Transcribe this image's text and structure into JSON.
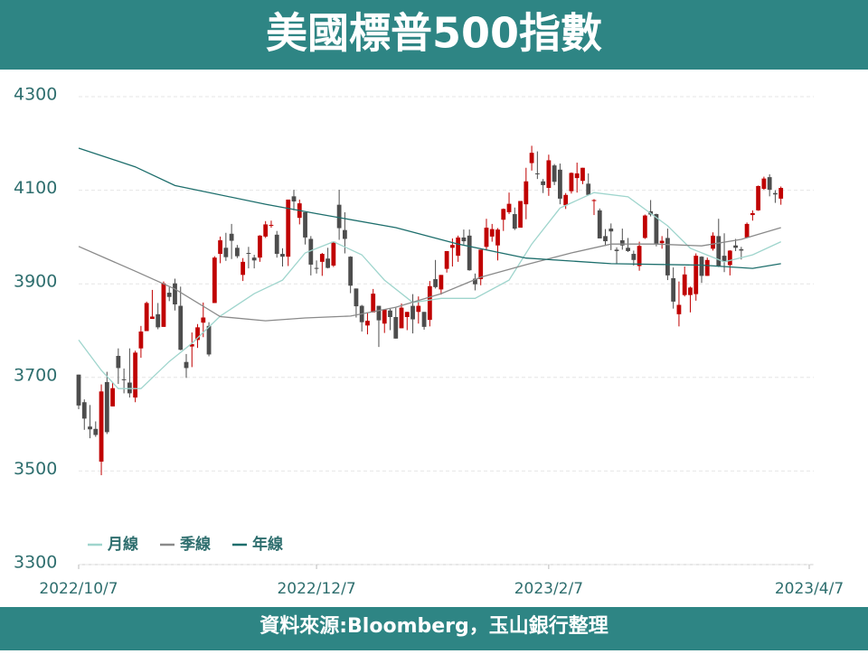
{
  "header": {
    "title": "美國標普500指數"
  },
  "footer": {
    "source": "資料來源:Bloomberg，玉山銀行整理"
  },
  "chart_data": {
    "type": "candlestick",
    "categories": [
      "2022/10/7",
      null,
      null,
      null,
      null,
      null,
      null,
      null,
      null,
      null,
      null,
      null,
      null,
      null,
      null,
      null,
      null,
      null,
      null,
      null,
      null,
      null,
      null,
      null,
      null,
      null,
      null,
      null,
      null,
      null,
      null,
      null,
      null,
      null,
      null,
      null,
      null,
      null,
      null,
      null,
      null,
      null,
      "2022/12/7",
      null,
      null,
      null,
      null,
      null,
      null,
      null,
      null,
      null,
      null,
      null,
      null,
      null,
      null,
      null,
      null,
      null,
      null,
      null,
      null,
      null,
      null,
      null,
      null,
      null,
      null,
      null,
      null,
      null,
      null,
      null,
      null,
      null,
      null,
      null,
      null,
      null,
      null,
      null,
      null,
      "2023/2/7",
      null,
      null,
      null,
      null,
      null,
      null,
      null,
      null,
      null,
      null,
      null,
      null,
      null,
      null,
      null,
      null,
      null,
      null,
      null,
      null,
      null,
      null,
      null,
      null,
      null,
      null,
      null,
      null,
      null,
      null,
      null,
      null,
      null,
      null,
      null,
      null,
      null,
      null,
      null,
      null,
      null,
      null,
      null,
      null,
      null,
      "2023/4/7"
    ],
    "candles": [
      [
        3706,
        3706,
        3632,
        3640
      ],
      [
        3647,
        3653,
        3588,
        3612
      ],
      [
        3595,
        3641,
        3570,
        3589
      ],
      [
        3590,
        3606,
        3573,
        3577
      ],
      [
        3520,
        3685,
        3491,
        3670
      ],
      [
        3690,
        3712,
        3579,
        3583
      ],
      [
        3638,
        3689,
        3638,
        3677
      ],
      [
        3746,
        3762,
        3686,
        3720
      ],
      [
        3696,
        3719,
        3666,
        3695
      ],
      [
        3689,
        3762,
        3657,
        3666
      ],
      [
        3657,
        3757,
        3647,
        3753
      ],
      [
        3762,
        3810,
        3742,
        3798
      ],
      [
        3799,
        3862,
        3799,
        3859
      ],
      [
        3825,
        3887,
        3825,
        3830
      ],
      [
        3835,
        3859,
        3803,
        3807
      ],
      [
        3808,
        3905,
        3808,
        3901
      ],
      [
        3881,
        3893,
        3863,
        3872
      ],
      [
        3901,
        3911,
        3843,
        3856
      ],
      [
        3853,
        3894,
        3758,
        3759
      ],
      [
        3733,
        3750,
        3699,
        3720
      ],
      [
        3766,
        3796,
        3722,
        3771
      ],
      [
        3780,
        3814,
        3763,
        3807
      ],
      [
        3817,
        3860,
        3786,
        3828
      ],
      [
        3810,
        3818,
        3745,
        3749
      ],
      [
        3859,
        3959,
        3859,
        3956
      ],
      [
        3964,
        4001,
        3944,
        3993
      ],
      [
        3977,
        4009,
        3949,
        3957
      ],
      [
        4007,
        4028,
        3953,
        3992
      ],
      [
        3977,
        3983,
        3955,
        3959
      ],
      [
        3919,
        3955,
        3906,
        3947
      ],
      [
        3966,
        3979,
        3933,
        3965
      ],
      [
        3956,
        3962,
        3933,
        3950
      ],
      [
        3956,
        4004,
        3947,
        4003
      ],
      [
        4001,
        4034,
        3998,
        4027
      ],
      [
        4024,
        4035,
        4020,
        4026
      ],
      [
        4005,
        4013,
        3956,
        3964
      ],
      [
        3964,
        3976,
        3937,
        3958
      ],
      [
        3958,
        4080,
        3938,
        4080
      ],
      [
        4087,
        4101,
        4057,
        4076
      ],
      [
        4041,
        4080,
        4027,
        4072
      ],
      [
        4053,
        4053,
        3984,
        3999
      ],
      [
        3996,
        4002,
        3918,
        3941
      ],
      [
        3934,
        3950,
        3922,
        3933
      ],
      [
        3947,
        3966,
        3917,
        3964
      ],
      [
        3954,
        3977,
        3933,
        3934
      ],
      [
        3939,
        3991,
        3936,
        3990
      ],
      [
        4069,
        4101,
        3994,
        4019
      ],
      [
        4015,
        4053,
        3965,
        3996
      ],
      [
        3958,
        3959,
        3880,
        3896
      ],
      [
        3890,
        3890,
        3828,
        3852
      ],
      [
        3853,
        3855,
        3798,
        3818
      ],
      [
        3811,
        3839,
        3792,
        3821
      ],
      [
        3839,
        3889,
        3839,
        3879
      ],
      [
        3853,
        3853,
        3765,
        3822
      ],
      [
        3815,
        3846,
        3795,
        3845
      ],
      [
        3843,
        3847,
        3801,
        3829
      ],
      [
        3829,
        3849,
        3783,
        3783
      ],
      [
        3805,
        3858,
        3805,
        3849
      ],
      [
        3829,
        3840,
        3801,
        3840
      ],
      [
        3853,
        3878,
        3794,
        3824
      ],
      [
        3840,
        3873,
        3815,
        3853
      ],
      [
        3840,
        3840,
        3802,
        3808
      ],
      [
        3823,
        3906,
        3809,
        3895
      ],
      [
        3910,
        3951,
        3890,
        3893
      ],
      [
        3888,
        3919,
        3877,
        3919
      ],
      [
        3932,
        3970,
        3924,
        3970
      ],
      [
        3977,
        3997,
        3937,
        3983
      ],
      [
        3960,
        4003,
        3947,
        3999
      ],
      [
        3999,
        4016,
        3984,
        3991
      ],
      [
        4003,
        4016,
        3928,
        3929
      ],
      [
        3911,
        3922,
        3886,
        3899
      ],
      [
        3910,
        3973,
        3897,
        3973
      ],
      [
        3979,
        4039,
        3972,
        4020
      ],
      [
        4001,
        4028,
        3990,
        4017
      ],
      [
        3982,
        4019,
        3950,
        4016
      ],
      [
        4037,
        4061,
        4013,
        4060
      ],
      [
        4053,
        4095,
        4049,
        4071
      ],
      [
        4049,
        4063,
        4015,
        4018
      ],
      [
        4020,
        4077,
        4020,
        4077
      ],
      [
        4070,
        4148,
        4038,
        4119
      ],
      [
        4158,
        4195,
        4142,
        4180
      ],
      [
        4136,
        4183,
        4124,
        4136
      ],
      [
        4119,
        4124,
        4094,
        4111
      ],
      [
        4105,
        4176,
        4088,
        4164
      ],
      [
        4153,
        4156,
        4111,
        4118
      ],
      [
        4144,
        4157,
        4070,
        4082
      ],
      [
        4068,
        4094,
        4060,
        4090
      ],
      [
        4098,
        4138,
        4093,
        4137
      ],
      [
        4126,
        4159,
        4095,
        4136
      ],
      [
        4120,
        4148,
        4113,
        4148
      ],
      [
        4114,
        4136,
        4089,
        4090
      ],
      [
        4077,
        4081,
        4047,
        4079
      ],
      [
        4057,
        4061,
        3997,
        3997
      ],
      [
        4002,
        4017,
        3981,
        3991
      ],
      [
        4018,
        4029,
        3972,
        4012
      ],
      [
        3973,
        3978,
        3943,
        3970
      ],
      [
        3993,
        4018,
        3973,
        3982
      ],
      [
        3977,
        3998,
        3968,
        3970
      ],
      [
        3964,
        3971,
        3939,
        3951
      ],
      [
        3938,
        3990,
        3928,
        3981
      ],
      [
        3998,
        4048,
        3996,
        4046
      ],
      [
        4055,
        4079,
        4044,
        4048
      ],
      [
        4049,
        4050,
        3980,
        3986
      ],
      [
        3987,
        4002,
        3975,
        3992
      ],
      [
        3998,
        4018,
        3908,
        3918
      ],
      [
        3912,
        3935,
        3847,
        3862
      ],
      [
        3835,
        3905,
        3809,
        3855
      ],
      [
        3876,
        3937,
        3873,
        3920
      ],
      [
        3876,
        3894,
        3839,
        3892
      ],
      [
        3878,
        3965,
        3864,
        3960
      ],
      [
        3958,
        3959,
        3902,
        3917
      ],
      [
        3917,
        3956,
        3917,
        3951
      ],
      [
        3975,
        4010,
        3971,
        4003
      ],
      [
        4002,
        4039,
        3936,
        3937
      ],
      [
        3960,
        4008,
        3925,
        3948
      ],
      [
        3940,
        3972,
        3918,
        3971
      ],
      [
        3982,
        3996,
        3970,
        3977
      ],
      [
        3974,
        3979,
        3952,
        3971
      ],
      [
        3999,
        4031,
        3999,
        4028
      ],
      [
        4047,
        4057,
        4035,
        4051
      ],
      [
        4057,
        4110,
        4056,
        4109
      ],
      [
        4103,
        4129,
        4101,
        4125
      ],
      [
        4128,
        4134,
        4087,
        4101
      ],
      [
        4094,
        4100,
        4073,
        4091
      ],
      [
        4082,
        4108,
        4069,
        4105
      ]
    ],
    "up_color": "#c00000",
    "down_color": "#4d4d4d",
    "series": [
      {
        "name": "月線",
        "color": "#9fd5cd",
        "x": [
          0,
          4,
          7,
          11,
          16,
          20,
          25,
          31,
          36,
          40,
          45,
          50,
          54,
          59,
          64,
          70,
          76,
          80,
          85,
          91,
          97,
          104,
          108,
          114,
          119,
          124
        ],
        "values": [
          3780,
          3715,
          3676,
          3676,
          3734,
          3773,
          3831,
          3879,
          3908,
          3966,
          3990,
          3962,
          3908,
          3860,
          3869,
          3869,
          3908,
          3985,
          4062,
          4095,
          4086,
          4024,
          3976,
          3947,
          3962,
          3990
        ]
      },
      {
        "name": "季線",
        "color": "#8a8a8a",
        "x": [
          0,
          10,
          17,
          25,
          33,
          40,
          48,
          56,
          64,
          71,
          79,
          87,
          94,
          102,
          110,
          117,
          124
        ],
        "values": [
          3980,
          3927,
          3889,
          3830,
          3821,
          3827,
          3831,
          3850,
          3879,
          3914,
          3941,
          3966,
          3985,
          3985,
          3981,
          3995,
          4020
        ]
      },
      {
        "name": "年線",
        "color": "#1d6e6c",
        "x": [
          0,
          10,
          17,
          33,
          42,
          56,
          67,
          79,
          94,
          110,
          119,
          124
        ],
        "values": [
          4190,
          4150,
          4110,
          4070,
          4050,
          4020,
          3985,
          3955,
          3943,
          3940,
          3933,
          3943
        ]
      }
    ],
    "ylim": [
      3300,
      4300
    ],
    "yticks": [
      3300,
      3500,
      3700,
      3900,
      4100,
      4300
    ],
    "grid": true,
    "legend": "bottom-left"
  }
}
